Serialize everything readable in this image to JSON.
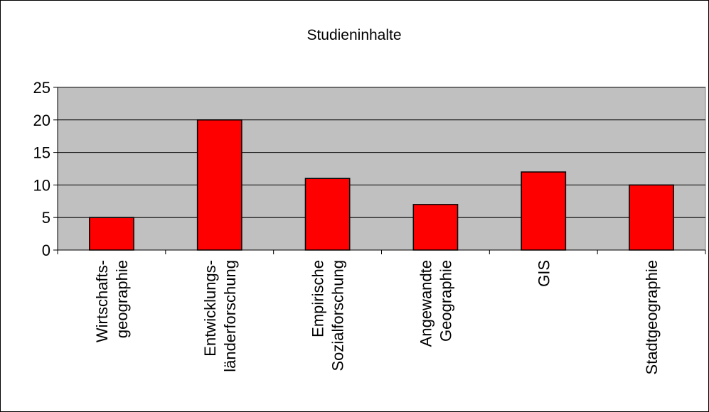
{
  "chart_data": {
    "type": "bar",
    "title": "Studieninhalte",
    "xlabel": "",
    "ylabel": "",
    "categories": [
      [
        "Wirtschafts-",
        "geographie"
      ],
      [
        "Entwicklungs-",
        "länderforschung"
      ],
      [
        "Empirische",
        "Sozialforschung"
      ],
      [
        "Angewandte",
        "Geographie"
      ],
      [
        "GIS"
      ],
      [
        "Stadtgeographie"
      ]
    ],
    "values": [
      5,
      20,
      11,
      7,
      12,
      10
    ],
    "ylim": [
      0,
      25
    ],
    "yticks": [
      "0",
      "5",
      "10",
      "15",
      "20",
      "25"
    ],
    "grid": true,
    "legend": "none",
    "colors": {
      "bar": "#ff0000",
      "plot_background": "#c0c0c0",
      "gridline": "#000000"
    }
  }
}
